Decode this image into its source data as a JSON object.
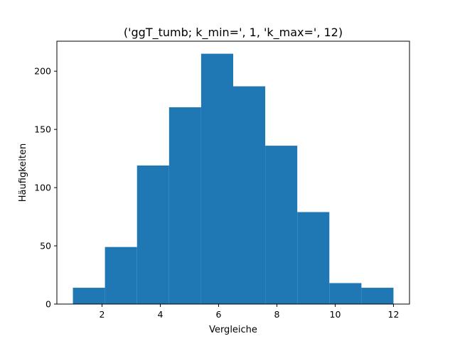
{
  "chart_data": {
    "type": "bar",
    "title": "('ggT_tumb; k_min=', 1, 'k_max=', 12)",
    "xlabel": "Vergleiche",
    "ylabel": "Häufigkeiten",
    "bin_edges": [
      1,
      2.1,
      3.2,
      4.3,
      5.4,
      6.5,
      7.6,
      8.7,
      9.8,
      10.9,
      12
    ],
    "values": [
      14,
      49,
      119,
      169,
      215,
      187,
      136,
      79,
      18,
      14
    ],
    "xlim": [
      0.45,
      12.55
    ],
    "ylim": [
      0,
      225.75
    ],
    "xticks": [
      2,
      4,
      6,
      8,
      10,
      12
    ],
    "yticks": [
      0,
      50,
      100,
      150,
      200
    ],
    "bar_color": "#1f77b4",
    "grid": false,
    "legend": "none"
  }
}
